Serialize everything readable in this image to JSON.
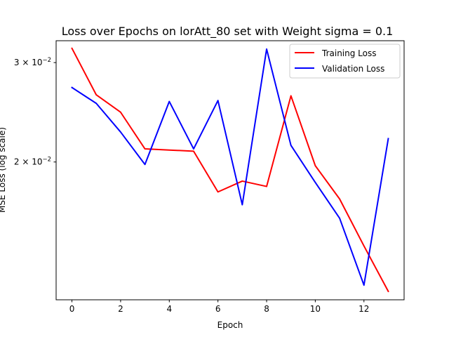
{
  "chart_data": {
    "type": "line",
    "title": "Loss over Epochs on lorAtt_80 set with Weight sigma = 0.1",
    "xlabel": "Epoch",
    "ylabel": "MSE Loss (log scale)",
    "y_scale": "log",
    "xlim": [
      -0.65,
      13.65
    ],
    "ylim": [
      0.0114,
      0.0328
    ],
    "x_ticks": [
      0,
      2,
      4,
      6,
      8,
      10,
      12
    ],
    "y_ticks": [
      {
        "value": 0.03,
        "label_base": "3 × 10",
        "label_exp": "−2"
      },
      {
        "value": 0.02,
        "label_base": "2 × 10",
        "label_exp": "−2"
      }
    ],
    "grid": false,
    "legend_position": "upper right",
    "x": [
      0,
      1,
      2,
      3,
      4,
      5,
      6,
      7,
      8,
      9,
      10,
      11,
      12,
      13
    ],
    "series": [
      {
        "name": "Training Loss",
        "color": "#ff0000",
        "values": [
          0.0318,
          0.0263,
          0.0245,
          0.0211,
          0.021,
          0.0209,
          0.0177,
          0.0185,
          0.0181,
          0.0262,
          0.0197,
          0.0172,
          0.0142,
          0.0118
        ]
      },
      {
        "name": "Validation Loss",
        "color": "#0000ff",
        "values": [
          0.0271,
          0.0254,
          0.0226,
          0.0198,
          0.0256,
          0.0211,
          0.0257,
          0.0168,
          0.0317,
          0.0214,
          0.0184,
          0.0159,
          0.0121,
          0.022
        ]
      }
    ]
  }
}
